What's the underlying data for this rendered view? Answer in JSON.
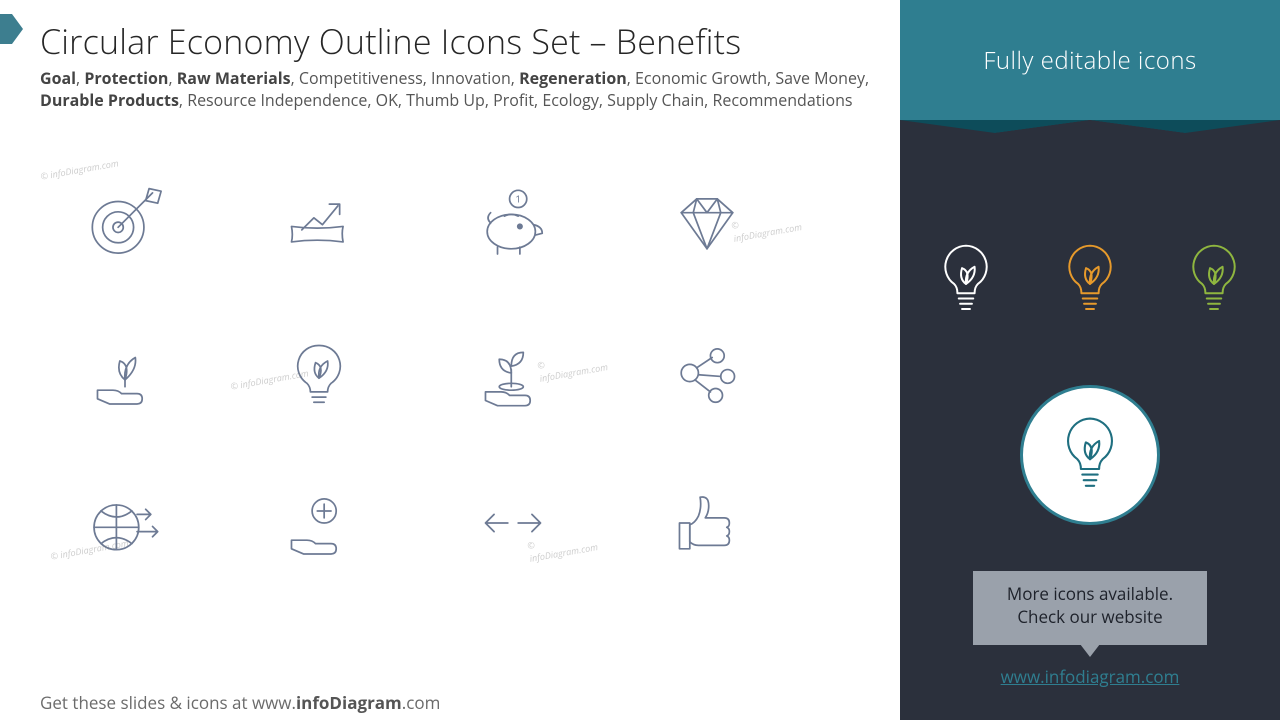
{
  "header": {
    "title": "Circular Economy Outline Icons Set – Benefits",
    "subtitle_parts": [
      {
        "t": "Goal",
        "b": true
      },
      {
        "t": ", "
      },
      {
        "t": "Protection",
        "b": true
      },
      {
        "t": ", "
      },
      {
        "t": "Raw Materials",
        "b": true
      },
      {
        "t": ", Competitiveness, Innovation, "
      },
      {
        "t": "Regeneration",
        "b": true
      },
      {
        "t": ", Economic Growth, Save Money, "
      },
      {
        "t": "Durable Products",
        "b": true
      },
      {
        "t": ", Resource Independence, OK, Thumb Up, Profit, Ecology, Supply Chain, Recommendations"
      }
    ]
  },
  "icon_stroke": "#6d7a94",
  "icon_stroke_width": 2,
  "watermark": "© infoDiagram.com",
  "grid_icons": [
    {
      "name": "target-icon"
    },
    {
      "name": "growth-chart-icon"
    },
    {
      "name": "piggy-bank-icon"
    },
    {
      "name": "diamond-icon"
    },
    {
      "name": "hand-leaf-icon"
    },
    {
      "name": "bulb-leaf-icon"
    },
    {
      "name": "hand-plant-icon"
    },
    {
      "name": "network-nodes-icon"
    },
    {
      "name": "globe-arrows-icon"
    },
    {
      "name": "hand-plus-icon"
    },
    {
      "name": "arrows-lr-icon"
    },
    {
      "name": "thumb-up-icon"
    }
  ],
  "footer": {
    "prefix": "Get these slides & icons at www.",
    "bold": "infoDiagram",
    "suffix": ".com"
  },
  "sidebar": {
    "title": "Fully editable icons",
    "bulb_colors": [
      "#ffffff",
      "#e79a2b",
      "#8fb63f"
    ],
    "big_bulb_color": "#1f6f80",
    "more_line1": "More icons available.",
    "more_line2": "Check our website",
    "url": "www.infodiagram.com",
    "bg": "#2b303c",
    "topbar_bg": "#2f7e90"
  }
}
